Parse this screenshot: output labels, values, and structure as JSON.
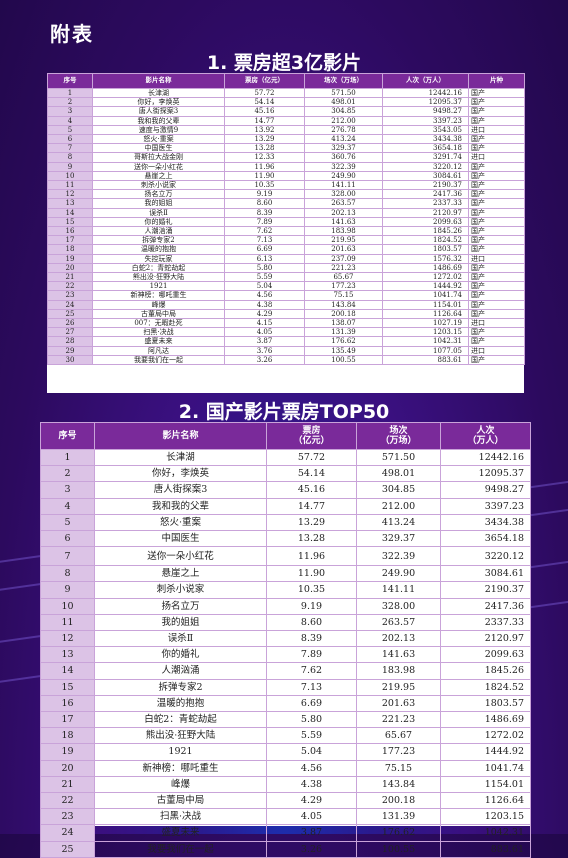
{
  "page": {
    "heading": "附表"
  },
  "section1": {
    "title": "1. 票房超3亿影片",
    "headers": [
      "序号",
      "影片名称",
      "票房（亿元）",
      "场次（万场）",
      "人次（万人）",
      "片种"
    ],
    "rows": [
      [
        "1",
        "长津湖",
        "57.72",
        "571.50",
        "12442.16",
        "国产"
      ],
      [
        "2",
        "你好，李焕英",
        "54.14",
        "498.01",
        "12095.37",
        "国产"
      ],
      [
        "3",
        "唐人街探案3",
        "45.16",
        "304.85",
        "9498.27",
        "国产"
      ],
      [
        "4",
        "我和我的父辈",
        "14.77",
        "212.00",
        "3397.23",
        "国产"
      ],
      [
        "5",
        "速度与激情9",
        "13.92",
        "276.78",
        "3543.05",
        "进口"
      ],
      [
        "6",
        "怒火·重案",
        "13.29",
        "413.24",
        "3434.38",
        "国产"
      ],
      [
        "7",
        "中国医生",
        "13.28",
        "329.37",
        "3654.18",
        "国产"
      ],
      [
        "8",
        "哥斯拉大战金刚",
        "12.33",
        "360.76",
        "3291.74",
        "进口"
      ],
      [
        "9",
        "送你一朵小红花",
        "11.96",
        "322.39",
        "3220.12",
        "国产"
      ],
      [
        "10",
        "悬崖之上",
        "11.90",
        "249.90",
        "3084.61",
        "国产"
      ],
      [
        "11",
        "刺杀小说家",
        "10.35",
        "141.11",
        "2190.37",
        "国产"
      ],
      [
        "12",
        "扬名立万",
        "9.19",
        "328.00",
        "2417.36",
        "国产"
      ],
      [
        "13",
        "我的姐姐",
        "8.60",
        "263.57",
        "2337.33",
        "国产"
      ],
      [
        "14",
        "误杀Ⅱ",
        "8.39",
        "202.13",
        "2120.97",
        "国产"
      ],
      [
        "15",
        "你的婚礼",
        "7.89",
        "141.63",
        "2099.63",
        "国产"
      ],
      [
        "16",
        "人潮汹涌",
        "7.62",
        "183.98",
        "1845.26",
        "国产"
      ],
      [
        "17",
        "拆弹专家2",
        "7.13",
        "219.95",
        "1824.52",
        "国产"
      ],
      [
        "18",
        "温暖的抱抱",
        "6.69",
        "201.63",
        "1803.57",
        "国产"
      ],
      [
        "19",
        "失控玩家",
        "6.13",
        "237.09",
        "1576.32",
        "进口"
      ],
      [
        "20",
        "白蛇2：青蛇劫起",
        "5.80",
        "221.23",
        "1486.69",
        "国产"
      ],
      [
        "21",
        "熊出没·狂野大陆",
        "5.59",
        "65.67",
        "1272.02",
        "国产"
      ],
      [
        "22",
        "1921",
        "5.04",
        "177.23",
        "1444.92",
        "国产"
      ],
      [
        "23",
        "新神榜：哪吒重生",
        "4.56",
        "75.15",
        "1041.74",
        "国产"
      ],
      [
        "24",
        "峰爆",
        "4.38",
        "143.84",
        "1154.01",
        "国产"
      ],
      [
        "25",
        "古董局中局",
        "4.29",
        "200.18",
        "1126.64",
        "国产"
      ],
      [
        "26",
        "007：无暇赴死",
        "4.15",
        "138.07",
        "1027.19",
        "进口"
      ],
      [
        "27",
        "扫黑·决战",
        "4.05",
        "131.39",
        "1203.15",
        "国产"
      ],
      [
        "28",
        "盛夏未来",
        "3.87",
        "176.62",
        "1042.31",
        "国产"
      ],
      [
        "29",
        "阿凡达",
        "3.76",
        "135.49",
        "1077.05",
        "进口"
      ],
      [
        "30",
        "我要我们在一起",
        "3.26",
        "100.55",
        "883.61",
        "国产"
      ]
    ]
  },
  "section2": {
    "title": "2. 国产影片票房TOP50",
    "headers": [
      "序号",
      "影片名称",
      "票房\n（亿元）",
      "场次\n（万场）",
      "人次\n（万人）"
    ],
    "rows": [
      [
        "1",
        "长津湖",
        "57.72",
        "571.50",
        "12442.16"
      ],
      [
        "2",
        "你好，李焕英",
        "54.14",
        "498.01",
        "12095.37"
      ],
      [
        "3",
        "唐人街探案3",
        "45.16",
        "304.85",
        "9498.27"
      ],
      [
        "4",
        "我和我的父辈",
        "14.77",
        "212.00",
        "3397.23"
      ],
      [
        "5",
        "怒火·重案",
        "13.29",
        "413.24",
        "3434.38"
      ],
      [
        "6",
        "中国医生",
        "13.28",
        "329.37",
        "3654.18"
      ],
      [
        "7",
        "送你一朵小红花",
        "11.96",
        "322.39",
        "3220.12"
      ],
      [
        "8",
        "悬崖之上",
        "11.90",
        "249.90",
        "3084.61"
      ],
      [
        "9",
        "刺杀小说家",
        "10.35",
        "141.11",
        "2190.37"
      ],
      [
        "10",
        "扬名立万",
        "9.19",
        "328.00",
        "2417.36"
      ],
      [
        "11",
        "我的姐姐",
        "8.60",
        "263.57",
        "2337.33"
      ],
      [
        "12",
        "误杀Ⅱ",
        "8.39",
        "202.13",
        "2120.97"
      ],
      [
        "13",
        "你的婚礼",
        "7.89",
        "141.63",
        "2099.63"
      ],
      [
        "14",
        "人潮汹涌",
        "7.62",
        "183.98",
        "1845.26"
      ],
      [
        "15",
        "拆弹专家2",
        "7.13",
        "219.95",
        "1824.52"
      ],
      [
        "16",
        "温暖的抱抱",
        "6.69",
        "201.63",
        "1803.57"
      ],
      [
        "17",
        "白蛇2：青蛇劫起",
        "5.80",
        "221.23",
        "1486.69"
      ],
      [
        "18",
        "熊出没·狂野大陆",
        "5.59",
        "65.67",
        "1272.02"
      ],
      [
        "19",
        "1921",
        "5.04",
        "177.23",
        "1444.92"
      ],
      [
        "20",
        "新神榜：哪吒重生",
        "4.56",
        "75.15",
        "1041.74"
      ],
      [
        "21",
        "峰爆",
        "4.38",
        "143.84",
        "1154.01"
      ],
      [
        "22",
        "古董局中局",
        "4.29",
        "200.18",
        "1126.64"
      ],
      [
        "23",
        "扫黑·决战",
        "4.05",
        "131.39",
        "1203.15"
      ],
      [
        "24",
        "盛夏未来",
        "3.87",
        "176.62",
        "1042.31"
      ],
      [
        "25",
        "我要我们在一起",
        "3.26",
        "100.55",
        "883.61"
      ]
    ]
  }
}
